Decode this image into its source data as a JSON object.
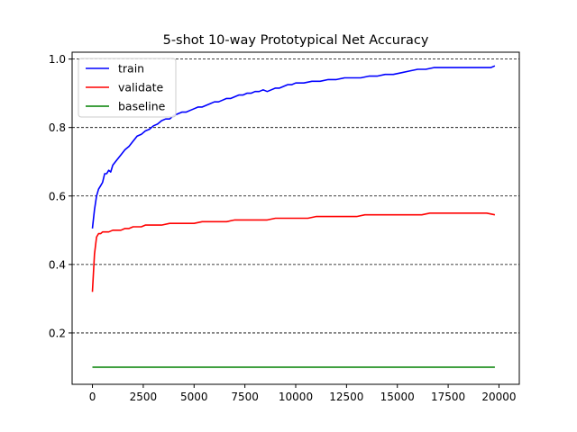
{
  "chart_data": {
    "type": "line",
    "title": "5-shot 10-way Prototypical Net Accuracy",
    "xlabel": "",
    "ylabel": "",
    "xlim": [
      -1000,
      21000
    ],
    "ylim": [
      0.05,
      1.02
    ],
    "xticks": [
      0,
      2500,
      5000,
      7500,
      10000,
      12500,
      15000,
      17500,
      20000
    ],
    "yticks": [
      0.2,
      0.4,
      0.6,
      0.8,
      1.0
    ],
    "xtick_labels": [
      "0",
      "2500",
      "5000",
      "7500",
      "10000",
      "12500",
      "15000",
      "17500",
      "20000"
    ],
    "ytick_labels": [
      "0.2",
      "0.4",
      "0.6",
      "0.8",
      "1.0"
    ],
    "grid": "horizontal dashed",
    "legend_position": "top-left",
    "series": [
      {
        "name": "train",
        "color": "#0000ff",
        "x": [
          0,
          100,
          200,
          300,
          400,
          500,
          600,
          700,
          800,
          900,
          1000,
          1200,
          1400,
          1600,
          1800,
          2000,
          2200,
          2400,
          2600,
          2800,
          3000,
          3200,
          3400,
          3600,
          3800,
          4000,
          4200,
          4400,
          4600,
          4800,
          5000,
          5200,
          5400,
          5600,
          5800,
          6000,
          6200,
          6400,
          6600,
          6800,
          7000,
          7200,
          7400,
          7600,
          7800,
          8000,
          8200,
          8400,
          8600,
          8800,
          9000,
          9200,
          9400,
          9600,
          9800,
          10000,
          10400,
          10800,
          11200,
          11600,
          12000,
          12400,
          12800,
          13200,
          13600,
          14000,
          14400,
          14800,
          15200,
          15600,
          16000,
          16400,
          16800,
          17200,
          17600,
          18000,
          18400,
          18800,
          19200,
          19600,
          19800
        ],
        "y": [
          0.505,
          0.56,
          0.6,
          0.62,
          0.63,
          0.64,
          0.665,
          0.665,
          0.675,
          0.67,
          0.69,
          0.705,
          0.72,
          0.735,
          0.745,
          0.76,
          0.775,
          0.78,
          0.79,
          0.795,
          0.805,
          0.81,
          0.82,
          0.825,
          0.825,
          0.835,
          0.84,
          0.845,
          0.845,
          0.85,
          0.855,
          0.86,
          0.86,
          0.865,
          0.87,
          0.875,
          0.875,
          0.88,
          0.885,
          0.885,
          0.89,
          0.895,
          0.895,
          0.9,
          0.9,
          0.905,
          0.905,
          0.91,
          0.905,
          0.91,
          0.915,
          0.915,
          0.92,
          0.925,
          0.925,
          0.93,
          0.93,
          0.935,
          0.935,
          0.94,
          0.94,
          0.945,
          0.945,
          0.945,
          0.95,
          0.95,
          0.955,
          0.955,
          0.96,
          0.965,
          0.97,
          0.97,
          0.975,
          0.975,
          0.975,
          0.975,
          0.975,
          0.975,
          0.975,
          0.975,
          0.98
        ]
      },
      {
        "name": "validate",
        "color": "#ff0000",
        "x": [
          0,
          100,
          200,
          300,
          400,
          500,
          600,
          800,
          1000,
          1200,
          1400,
          1600,
          1800,
          2000,
          2200,
          2400,
          2600,
          2800,
          3000,
          3400,
          3800,
          4200,
          4600,
          5000,
          5400,
          5800,
          6200,
          6600,
          7000,
          7400,
          7800,
          8200,
          8600,
          9000,
          9400,
          9800,
          10200,
          10600,
          11000,
          11400,
          11800,
          12200,
          12600,
          13000,
          13400,
          13800,
          14200,
          14600,
          15000,
          15400,
          15800,
          16200,
          16600,
          17000,
          17400,
          17800,
          18200,
          18600,
          19000,
          19400,
          19800
        ],
        "y": [
          0.32,
          0.43,
          0.48,
          0.49,
          0.49,
          0.495,
          0.495,
          0.495,
          0.5,
          0.5,
          0.5,
          0.505,
          0.505,
          0.51,
          0.51,
          0.51,
          0.515,
          0.515,
          0.515,
          0.515,
          0.52,
          0.52,
          0.52,
          0.52,
          0.525,
          0.525,
          0.525,
          0.525,
          0.53,
          0.53,
          0.53,
          0.53,
          0.53,
          0.535,
          0.535,
          0.535,
          0.535,
          0.535,
          0.54,
          0.54,
          0.54,
          0.54,
          0.54,
          0.54,
          0.545,
          0.545,
          0.545,
          0.545,
          0.545,
          0.545,
          0.545,
          0.545,
          0.55,
          0.55,
          0.55,
          0.55,
          0.55,
          0.55,
          0.55,
          0.55,
          0.545
        ]
      },
      {
        "name": "baseline",
        "color": "#008000",
        "x": [
          0,
          19800
        ],
        "y": [
          0.1,
          0.1
        ]
      }
    ]
  }
}
